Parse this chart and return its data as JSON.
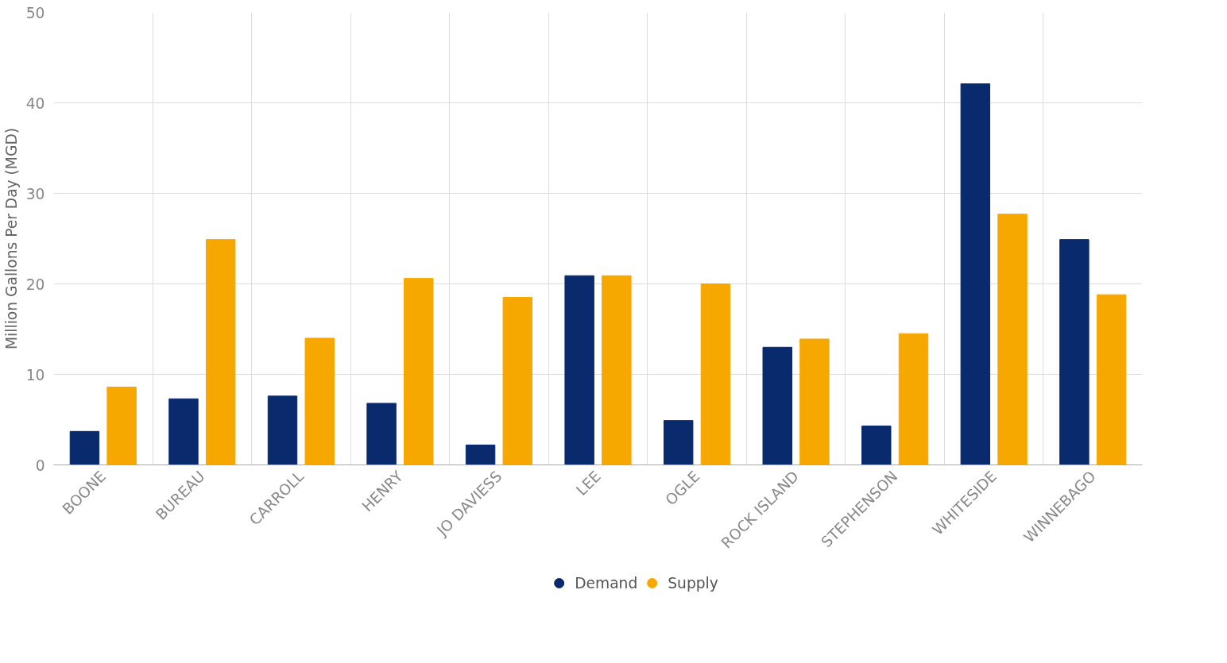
{
  "chart_data": {
    "type": "bar",
    "ylabel": "Million Gallons Per Day (MGD)",
    "categories": [
      "BOONE",
      "BUREAU",
      "CARROLL",
      "HENRY",
      "JO DAVIESS",
      "LEE",
      "OGLE",
      "ROCK ISLAND",
      "STEPHENSON",
      "WHITESIDE",
      "WINNEBAGO"
    ],
    "series": [
      {
        "name": "Demand",
        "color": "#0a2a6e",
        "values": [
          3.7,
          7.3,
          7.6,
          6.8,
          2.2,
          20.9,
          4.9,
          13.0,
          4.3,
          42.1,
          24.9
        ]
      },
      {
        "name": "Supply",
        "color": "#f7a800",
        "values": [
          8.6,
          24.9,
          14.0,
          20.6,
          18.5,
          20.9,
          20.0,
          13.9,
          14.5,
          27.7,
          18.8
        ]
      }
    ],
    "ylim": [
      0,
      50
    ],
    "yticks": [
      0,
      10,
      20,
      30,
      40,
      50
    ],
    "grid": true,
    "legend": "bottom"
  }
}
